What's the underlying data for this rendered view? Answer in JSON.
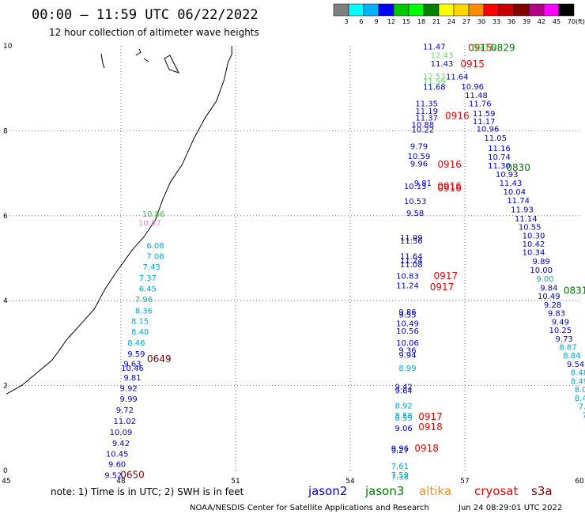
{
  "header": {
    "title": "00:00 – 11:59 UTC 06/22/2022",
    "subtitle": "12 hour collection of altimeter wave heights"
  },
  "colorbar": {
    "labels": [
      "3",
      "6",
      "9",
      "12",
      "15",
      "18",
      "21",
      "24",
      "27",
      "30",
      "33",
      "36",
      "39",
      "42",
      "45",
      "70"
    ],
    "unit": "(ft)",
    "colors": [
      "#808080",
      "#00ffff",
      "#00b4ff",
      "#0000ff",
      "#00c800",
      "#00ff00",
      "#008000",
      "#ffff00",
      "#ffd700",
      "#ff8c00",
      "#ff0000",
      "#c80000",
      "#800000",
      "#b40082",
      "#ff00ff",
      "#000000"
    ]
  },
  "footer": {
    "note": "note: 1) Time is in UTC; 2) SWH is in feet",
    "credit": "NOAA/NESDIS Center for Satellite Applications and Research",
    "timestamp": "Jun 24 08:29:01 UTC 2022"
  },
  "missions": [
    {
      "name": "jason2",
      "color": "#0000cc"
    },
    {
      "name": "jason3",
      "color": "#008000"
    },
    {
      "name": "altika",
      "color": "#ff8c00"
    },
    {
      "name": "cryosat",
      "color": "#ee0000"
    },
    {
      "name": "s3a",
      "color": "#800000"
    }
  ],
  "chart_data": {
    "type": "scatter",
    "xlim": [
      45,
      60
    ],
    "ylim": [
      0,
      10
    ],
    "x_ticks": [
      45,
      48,
      51,
      54,
      57,
      60
    ],
    "y_ticks": [
      0,
      2,
      4,
      6,
      8,
      10
    ],
    "grid": true,
    "coastline": [
      [
        50.9,
        10
      ],
      [
        50.9,
        9.8
      ],
      [
        50.8,
        9.6
      ],
      [
        50.7,
        9.2
      ],
      [
        50.5,
        8.7
      ],
      [
        50.2,
        8.3
      ],
      [
        49.9,
        7.8
      ],
      [
        49.6,
        7.2
      ],
      [
        49.3,
        6.8
      ],
      [
        49.1,
        6.4
      ],
      [
        48.9,
        5.9
      ],
      [
        48.6,
        5.5
      ],
      [
        48.3,
        5.2
      ],
      [
        47.9,
        4.7
      ],
      [
        47.6,
        4.3
      ],
      [
        47.3,
        3.8
      ],
      [
        47.0,
        3.5
      ],
      [
        46.6,
        3.1
      ],
      [
        46.2,
        2.6
      ],
      [
        45.8,
        2.3
      ],
      [
        45.4,
        2.0
      ],
      [
        45.0,
        1.8
      ]
    ],
    "colors": {
      "blue": "#0000cc",
      "green": "#33cc33",
      "lightgreen": "#66dd66",
      "cyan": "#00aacc",
      "plum": "#dd88dd",
      "red": "#ee0000",
      "maroon": "#800000",
      "dkgreen": "#007700"
    },
    "points": [
      {
        "x": 48.85,
        "y": 5.98,
        "value": "10.86",
        "color": "green"
      },
      {
        "x": 48.75,
        "y": 5.76,
        "value": "10.87",
        "color": "plum"
      },
      {
        "x": 48.9,
        "y": 5.23,
        "value": "6.08",
        "color": "cyan"
      },
      {
        "x": 48.9,
        "y": 4.98,
        "value": "7.08",
        "color": "cyan"
      },
      {
        "x": 48.8,
        "y": 4.73,
        "value": "7.43",
        "color": "cyan"
      },
      {
        "x": 48.7,
        "y": 4.47,
        "value": "7.37",
        "color": "cyan"
      },
      {
        "x": 48.7,
        "y": 4.22,
        "value": "6.45",
        "color": "cyan"
      },
      {
        "x": 48.6,
        "y": 3.97,
        "value": "7.96",
        "color": "cyan"
      },
      {
        "x": 48.6,
        "y": 3.7,
        "value": "8.36",
        "color": "cyan"
      },
      {
        "x": 48.5,
        "y": 3.45,
        "value": "8.15",
        "color": "cyan"
      },
      {
        "x": 48.5,
        "y": 3.2,
        "value": "8.40",
        "color": "cyan"
      },
      {
        "x": 48.4,
        "y": 2.94,
        "value": "8.46",
        "color": "cyan"
      },
      {
        "x": 48.4,
        "y": 2.68,
        "value": "9.59",
        "color": "blue"
      },
      {
        "x": 48.3,
        "y": 2.45,
        "value": "9.63",
        "color": "blue"
      },
      {
        "x": 48.3,
        "y": 2.35,
        "value": "10.46",
        "color": "blue"
      },
      {
        "x": 48.3,
        "y": 2.12,
        "value": "9.81",
        "color": "blue"
      },
      {
        "x": 48.2,
        "y": 1.87,
        "value": "9.92",
        "color": "blue"
      },
      {
        "x": 48.2,
        "y": 1.62,
        "value": "9.99",
        "color": "blue"
      },
      {
        "x": 48.1,
        "y": 1.36,
        "value": "9.72",
        "color": "blue"
      },
      {
        "x": 48.1,
        "y": 1.1,
        "value": "11.02",
        "color": "blue"
      },
      {
        "x": 48.0,
        "y": 0.84,
        "value": "10.09",
        "color": "blue"
      },
      {
        "x": 48.0,
        "y": 0.58,
        "value": "9.42",
        "color": "blue"
      },
      {
        "x": 47.9,
        "y": 0.33,
        "value": "10.45",
        "color": "blue"
      },
      {
        "x": 47.9,
        "y": 0.08,
        "value": "9.60",
        "color": "blue"
      },
      {
        "x": 47.8,
        "y": -0.18,
        "value": "9.52",
        "color": "blue"
      },
      {
        "x": 56.2,
        "y": 9.92,
        "value": "11.47",
        "color": "blue"
      },
      {
        "x": 56.4,
        "y": 9.71,
        "value": "12.43",
        "color": "lightgreen"
      },
      {
        "x": 56.4,
        "y": 9.52,
        "value": "11.43",
        "color": "blue"
      },
      {
        "x": 56.2,
        "y": 9.22,
        "value": "12.53",
        "color": "lightgreen"
      },
      {
        "x": 56.2,
        "y": 9.1,
        "value": "11.59",
        "color": "lightgreen"
      },
      {
        "x": 56.8,
        "y": 9.21,
        "value": "11.64",
        "color": "blue"
      },
      {
        "x": 56.2,
        "y": 8.97,
        "value": "11.68",
        "color": "blue"
      },
      {
        "x": 57.2,
        "y": 8.98,
        "value": "10.96",
        "color": "blue"
      },
      {
        "x": 57.3,
        "y": 8.77,
        "value": "11.48",
        "color": "blue"
      },
      {
        "x": 56.0,
        "y": 8.58,
        "value": "11.35",
        "color": "blue"
      },
      {
        "x": 57.4,
        "y": 8.58,
        "value": "11.76",
        "color": "blue"
      },
      {
        "x": 56.0,
        "y": 8.4,
        "value": "11.19",
        "color": "blue"
      },
      {
        "x": 57.5,
        "y": 8.34,
        "value": "11.59",
        "color": "blue"
      },
      {
        "x": 56.0,
        "y": 8.24,
        "value": "11.37",
        "color": "blue"
      },
      {
        "x": 57.5,
        "y": 8.16,
        "value": "11.17",
        "color": "blue"
      },
      {
        "x": 55.9,
        "y": 8.08,
        "value": "10.88",
        "color": "blue"
      },
      {
        "x": 55.9,
        "y": 7.96,
        "value": "10.22",
        "color": "blue"
      },
      {
        "x": 57.6,
        "y": 7.98,
        "value": "10.96",
        "color": "blue"
      },
      {
        "x": 57.8,
        "y": 7.77,
        "value": "11.05",
        "color": "blue"
      },
      {
        "x": 55.8,
        "y": 7.57,
        "value": "9.79",
        "color": "blue"
      },
      {
        "x": 57.9,
        "y": 7.52,
        "value": "11.16",
        "color": "blue"
      },
      {
        "x": 55.8,
        "y": 7.34,
        "value": "10.59",
        "color": "blue"
      },
      {
        "x": 57.9,
        "y": 7.32,
        "value": "10.74",
        "color": "blue"
      },
      {
        "x": 55.8,
        "y": 7.16,
        "value": "9.96",
        "color": "blue"
      },
      {
        "x": 57.9,
        "y": 7.11,
        "value": "11.30",
        "color": "blue"
      },
      {
        "x": 58.1,
        "y": 6.91,
        "value": "10.93",
        "color": "blue"
      },
      {
        "x": 55.9,
        "y": 6.7,
        "value": "9.81",
        "color": "blue"
      },
      {
        "x": 55.7,
        "y": 6.63,
        "value": "10.13",
        "color": "blue"
      },
      {
        "x": 58.2,
        "y": 6.7,
        "value": "11.43",
        "color": "blue"
      },
      {
        "x": 58.3,
        "y": 6.5,
        "value": "10.04",
        "color": "blue"
      },
      {
        "x": 55.7,
        "y": 6.28,
        "value": "10.53",
        "color": "blue"
      },
      {
        "x": 58.4,
        "y": 6.29,
        "value": "11.74",
        "color": "blue"
      },
      {
        "x": 58.5,
        "y": 6.08,
        "value": "11.93",
        "color": "blue"
      },
      {
        "x": 55.7,
        "y": 6.0,
        "value": "9.58",
        "color": "blue"
      },
      {
        "x": 58.6,
        "y": 5.87,
        "value": "11.14",
        "color": "blue"
      },
      {
        "x": 58.7,
        "y": 5.67,
        "value": "10.55",
        "color": "blue"
      },
      {
        "x": 55.6,
        "y": 5.42,
        "value": "11.99",
        "color": "blue"
      },
      {
        "x": 55.6,
        "y": 5.34,
        "value": "11.56",
        "color": "blue"
      },
      {
        "x": 58.8,
        "y": 5.47,
        "value": "10.30",
        "color": "blue"
      },
      {
        "x": 58.8,
        "y": 5.27,
        "value": "10.42",
        "color": "blue"
      },
      {
        "x": 58.8,
        "y": 5.07,
        "value": "10.34",
        "color": "blue"
      },
      {
        "x": 55.6,
        "y": 4.98,
        "value": "11.64",
        "color": "blue"
      },
      {
        "x": 55.6,
        "y": 4.88,
        "value": "11.24",
        "color": "blue"
      },
      {
        "x": 55.6,
        "y": 4.79,
        "value": "11.08",
        "color": "blue"
      },
      {
        "x": 59.0,
        "y": 4.86,
        "value": "9.89",
        "color": "blue"
      },
      {
        "x": 59.0,
        "y": 4.66,
        "value": "10.00",
        "color": "blue"
      },
      {
        "x": 55.5,
        "y": 4.52,
        "value": "10.83",
        "color": "blue"
      },
      {
        "x": 59.1,
        "y": 4.45,
        "value": "9.00",
        "color": "cyan"
      },
      {
        "x": 55.5,
        "y": 4.29,
        "value": "11.24",
        "color": "blue"
      },
      {
        "x": 59.2,
        "y": 4.24,
        "value": "9.84",
        "color": "blue"
      },
      {
        "x": 59.2,
        "y": 4.04,
        "value": "10.49",
        "color": "blue"
      },
      {
        "x": 59.3,
        "y": 3.84,
        "value": "9.28",
        "color": "blue"
      },
      {
        "x": 55.5,
        "y": 3.67,
        "value": "9.86",
        "color": "blue"
      },
      {
        "x": 55.5,
        "y": 3.6,
        "value": "9.55",
        "color": "blue"
      },
      {
        "x": 59.4,
        "y": 3.64,
        "value": "9.83",
        "color": "blue"
      },
      {
        "x": 55.5,
        "y": 3.4,
        "value": "10.49",
        "color": "blue"
      },
      {
        "x": 59.5,
        "y": 3.44,
        "value": "9.49",
        "color": "blue"
      },
      {
        "x": 55.5,
        "y": 3.22,
        "value": "10.56",
        "color": "blue"
      },
      {
        "x": 59.5,
        "y": 3.24,
        "value": "10.25",
        "color": "blue"
      },
      {
        "x": 59.6,
        "y": 3.04,
        "value": "9.73",
        "color": "blue"
      },
      {
        "x": 55.5,
        "y": 2.94,
        "value": "10.06",
        "color": "blue"
      },
      {
        "x": 59.7,
        "y": 2.84,
        "value": "8.87",
        "color": "cyan"
      },
      {
        "x": 55.5,
        "y": 2.77,
        "value": "9.36",
        "color": "blue"
      },
      {
        "x": 55.5,
        "y": 2.65,
        "value": "9.94",
        "color": "blue"
      },
      {
        "x": 59.8,
        "y": 2.64,
        "value": "8.84",
        "color": "cyan"
      },
      {
        "x": 59.9,
        "y": 2.44,
        "value": "9.54",
        "color": "blue"
      },
      {
        "x": 55.5,
        "y": 2.35,
        "value": "8.99",
        "color": "cyan"
      },
      {
        "x": 60.0,
        "y": 2.24,
        "value": "8.48",
        "color": "cyan"
      },
      {
        "x": 60.0,
        "y": 2.04,
        "value": "8.49",
        "color": "cyan"
      },
      {
        "x": 55.4,
        "y": 1.91,
        "value": "9.42",
        "color": "blue"
      },
      {
        "x": 55.4,
        "y": 1.82,
        "value": "9.64",
        "color": "blue"
      },
      {
        "x": 60.1,
        "y": 1.84,
        "value": "8.06",
        "color": "cyan"
      },
      {
        "x": 60.1,
        "y": 1.64,
        "value": "8.47",
        "color": "cyan"
      },
      {
        "x": 55.4,
        "y": 1.46,
        "value": "8.92",
        "color": "cyan"
      },
      {
        "x": 60.2,
        "y": 1.44,
        "value": "7.92",
        "color": "cyan"
      },
      {
        "x": 55.4,
        "y": 1.23,
        "value": "8.58",
        "color": "cyan"
      },
      {
        "x": 55.4,
        "y": 1.17,
        "value": "8.55",
        "color": "cyan"
      },
      {
        "x": 60.3,
        "y": 1.24,
        "value": "7.96",
        "color": "cyan"
      },
      {
        "x": 55.4,
        "y": 0.93,
        "value": "9.06",
        "color": "blue"
      },
      {
        "x": 60.3,
        "y": 1.04,
        "value": "8.9",
        "color": "cyan"
      },
      {
        "x": 60.4,
        "y": 0.84,
        "value": "8.",
        "color": "cyan"
      },
      {
        "x": 55.3,
        "y": 0.46,
        "value": "9.96",
        "color": "blue"
      },
      {
        "x": 55.3,
        "y": 0.41,
        "value": "9.27",
        "color": "blue"
      },
      {
        "x": 60.4,
        "y": 0.64,
        "value": "8",
        "color": "cyan"
      },
      {
        "x": 55.3,
        "y": 0.04,
        "value": "7.61",
        "color": "cyan"
      },
      {
        "x": 55.3,
        "y": -0.17,
        "value": "7.59",
        "color": "cyan"
      },
      {
        "x": 55.3,
        "y": -0.21,
        "value": "7.38",
        "color": "cyan"
      }
    ],
    "times": [
      {
        "x": 49.0,
        "y": 2.55,
        "label": "0649",
        "color": "maroon"
      },
      {
        "x": 48.3,
        "y": -0.18,
        "label": "0650",
        "color": "maroon"
      },
      {
        "x": 57.4,
        "y": 9.88,
        "label": "0915",
        "color": "red"
      },
      {
        "x": 58.0,
        "y": 9.88,
        "label": "0829",
        "color": "dkgreen"
      },
      {
        "x": 57.5,
        "y": 9.88,
        "label": "0915",
        "color": "green"
      },
      {
        "x": 57.2,
        "y": 9.5,
        "label": "0915",
        "color": "red"
      },
      {
        "x": 56.8,
        "y": 8.28,
        "label": "0916",
        "color": "red"
      },
      {
        "x": 56.6,
        "y": 7.13,
        "label": "0916",
        "color": "red"
      },
      {
        "x": 58.4,
        "y": 7.06,
        "label": "0830",
        "color": "dkgreen"
      },
      {
        "x": 56.6,
        "y": 6.62,
        "label": "0916",
        "color": "red"
      },
      {
        "x": 56.6,
        "y": 6.57,
        "label": "0916",
        "color": "red"
      },
      {
        "x": 56.5,
        "y": 4.51,
        "label": "0917",
        "color": "red"
      },
      {
        "x": 56.4,
        "y": 4.25,
        "label": "0917",
        "color": "red"
      },
      {
        "x": 59.9,
        "y": 4.16,
        "label": "0831",
        "color": "dkgreen"
      },
      {
        "x": 56.1,
        "y": 1.19,
        "label": "0917",
        "color": "red"
      },
      {
        "x": 56.1,
        "y": 0.95,
        "label": "0918",
        "color": "red"
      },
      {
        "x": 56.0,
        "y": 0.45,
        "label": "0918",
        "color": "red"
      }
    ]
  }
}
